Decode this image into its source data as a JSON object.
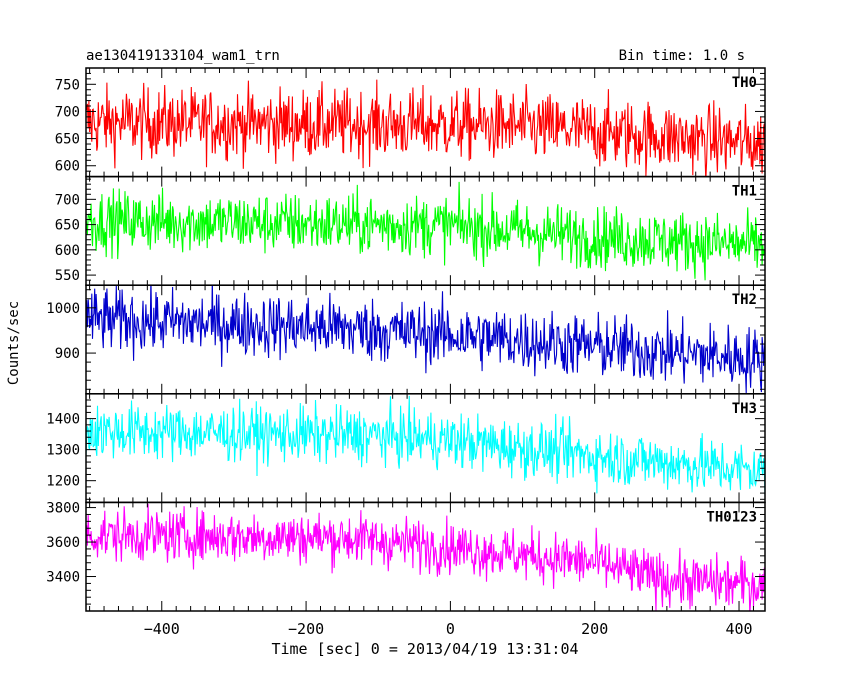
{
  "header": {
    "obs_label": "ae130419133104_wam1_trn",
    "bin_label": "Bin time: 1.0 s"
  },
  "axes": {
    "xlabel": "Time [sec] 0 = 2013/04/19 13:31:04",
    "ylabel": "Counts/sec"
  },
  "chart_data": {
    "type": "line",
    "x": {
      "start": -505,
      "end": 436,
      "step": 1,
      "unit": "sec"
    },
    "xlim": [
      -505,
      436
    ],
    "xticks": [
      -400,
      -200,
      0,
      200,
      400
    ],
    "grid": false,
    "panels": [
      {
        "name": "TH0",
        "color": "#ff0000",
        "ylim": [
          580,
          780
        ],
        "yticks": [
          600,
          650,
          700,
          750
        ],
        "trend": [
          [
            -505,
            680
          ],
          [
            0,
            675
          ],
          [
            100,
            672
          ],
          [
            436,
            640
          ]
        ],
        "noise": 32
      },
      {
        "name": "TH1",
        "color": "#00ff00",
        "ylim": [
          530,
          745
        ],
        "yticks": [
          550,
          600,
          650,
          700
        ],
        "trend": [
          [
            -505,
            658
          ],
          [
            0,
            648
          ],
          [
            200,
            625
          ],
          [
            436,
            608
          ]
        ],
        "noise": 30
      },
      {
        "name": "TH2",
        "color": "#0000cc",
        "ylim": [
          810,
          1050
        ],
        "yticks": [
          900,
          1000
        ],
        "trend": [
          [
            -505,
            975
          ],
          [
            -150,
            955
          ],
          [
            0,
            940
          ],
          [
            200,
            915
          ],
          [
            436,
            885
          ]
        ],
        "noise": 35
      },
      {
        "name": "TH3",
        "color": "#00ffff",
        "ylim": [
          1130,
          1480
        ],
        "yticks": [
          1200,
          1300,
          1400
        ],
        "trend": [
          [
            -505,
            1360
          ],
          [
            -100,
            1345
          ],
          [
            0,
            1330
          ],
          [
            200,
            1280
          ],
          [
            436,
            1230
          ]
        ],
        "noise": 45
      },
      {
        "name": "TH0123",
        "color": "#ff00ff",
        "ylim": [
          3200,
          3830
        ],
        "yticks": [
          3400,
          3600,
          3800
        ],
        "trend": [
          [
            -505,
            3640
          ],
          [
            -150,
            3625
          ],
          [
            0,
            3570
          ],
          [
            200,
            3480
          ],
          [
            300,
            3380
          ],
          [
            436,
            3350
          ]
        ],
        "noise": 75
      }
    ]
  }
}
